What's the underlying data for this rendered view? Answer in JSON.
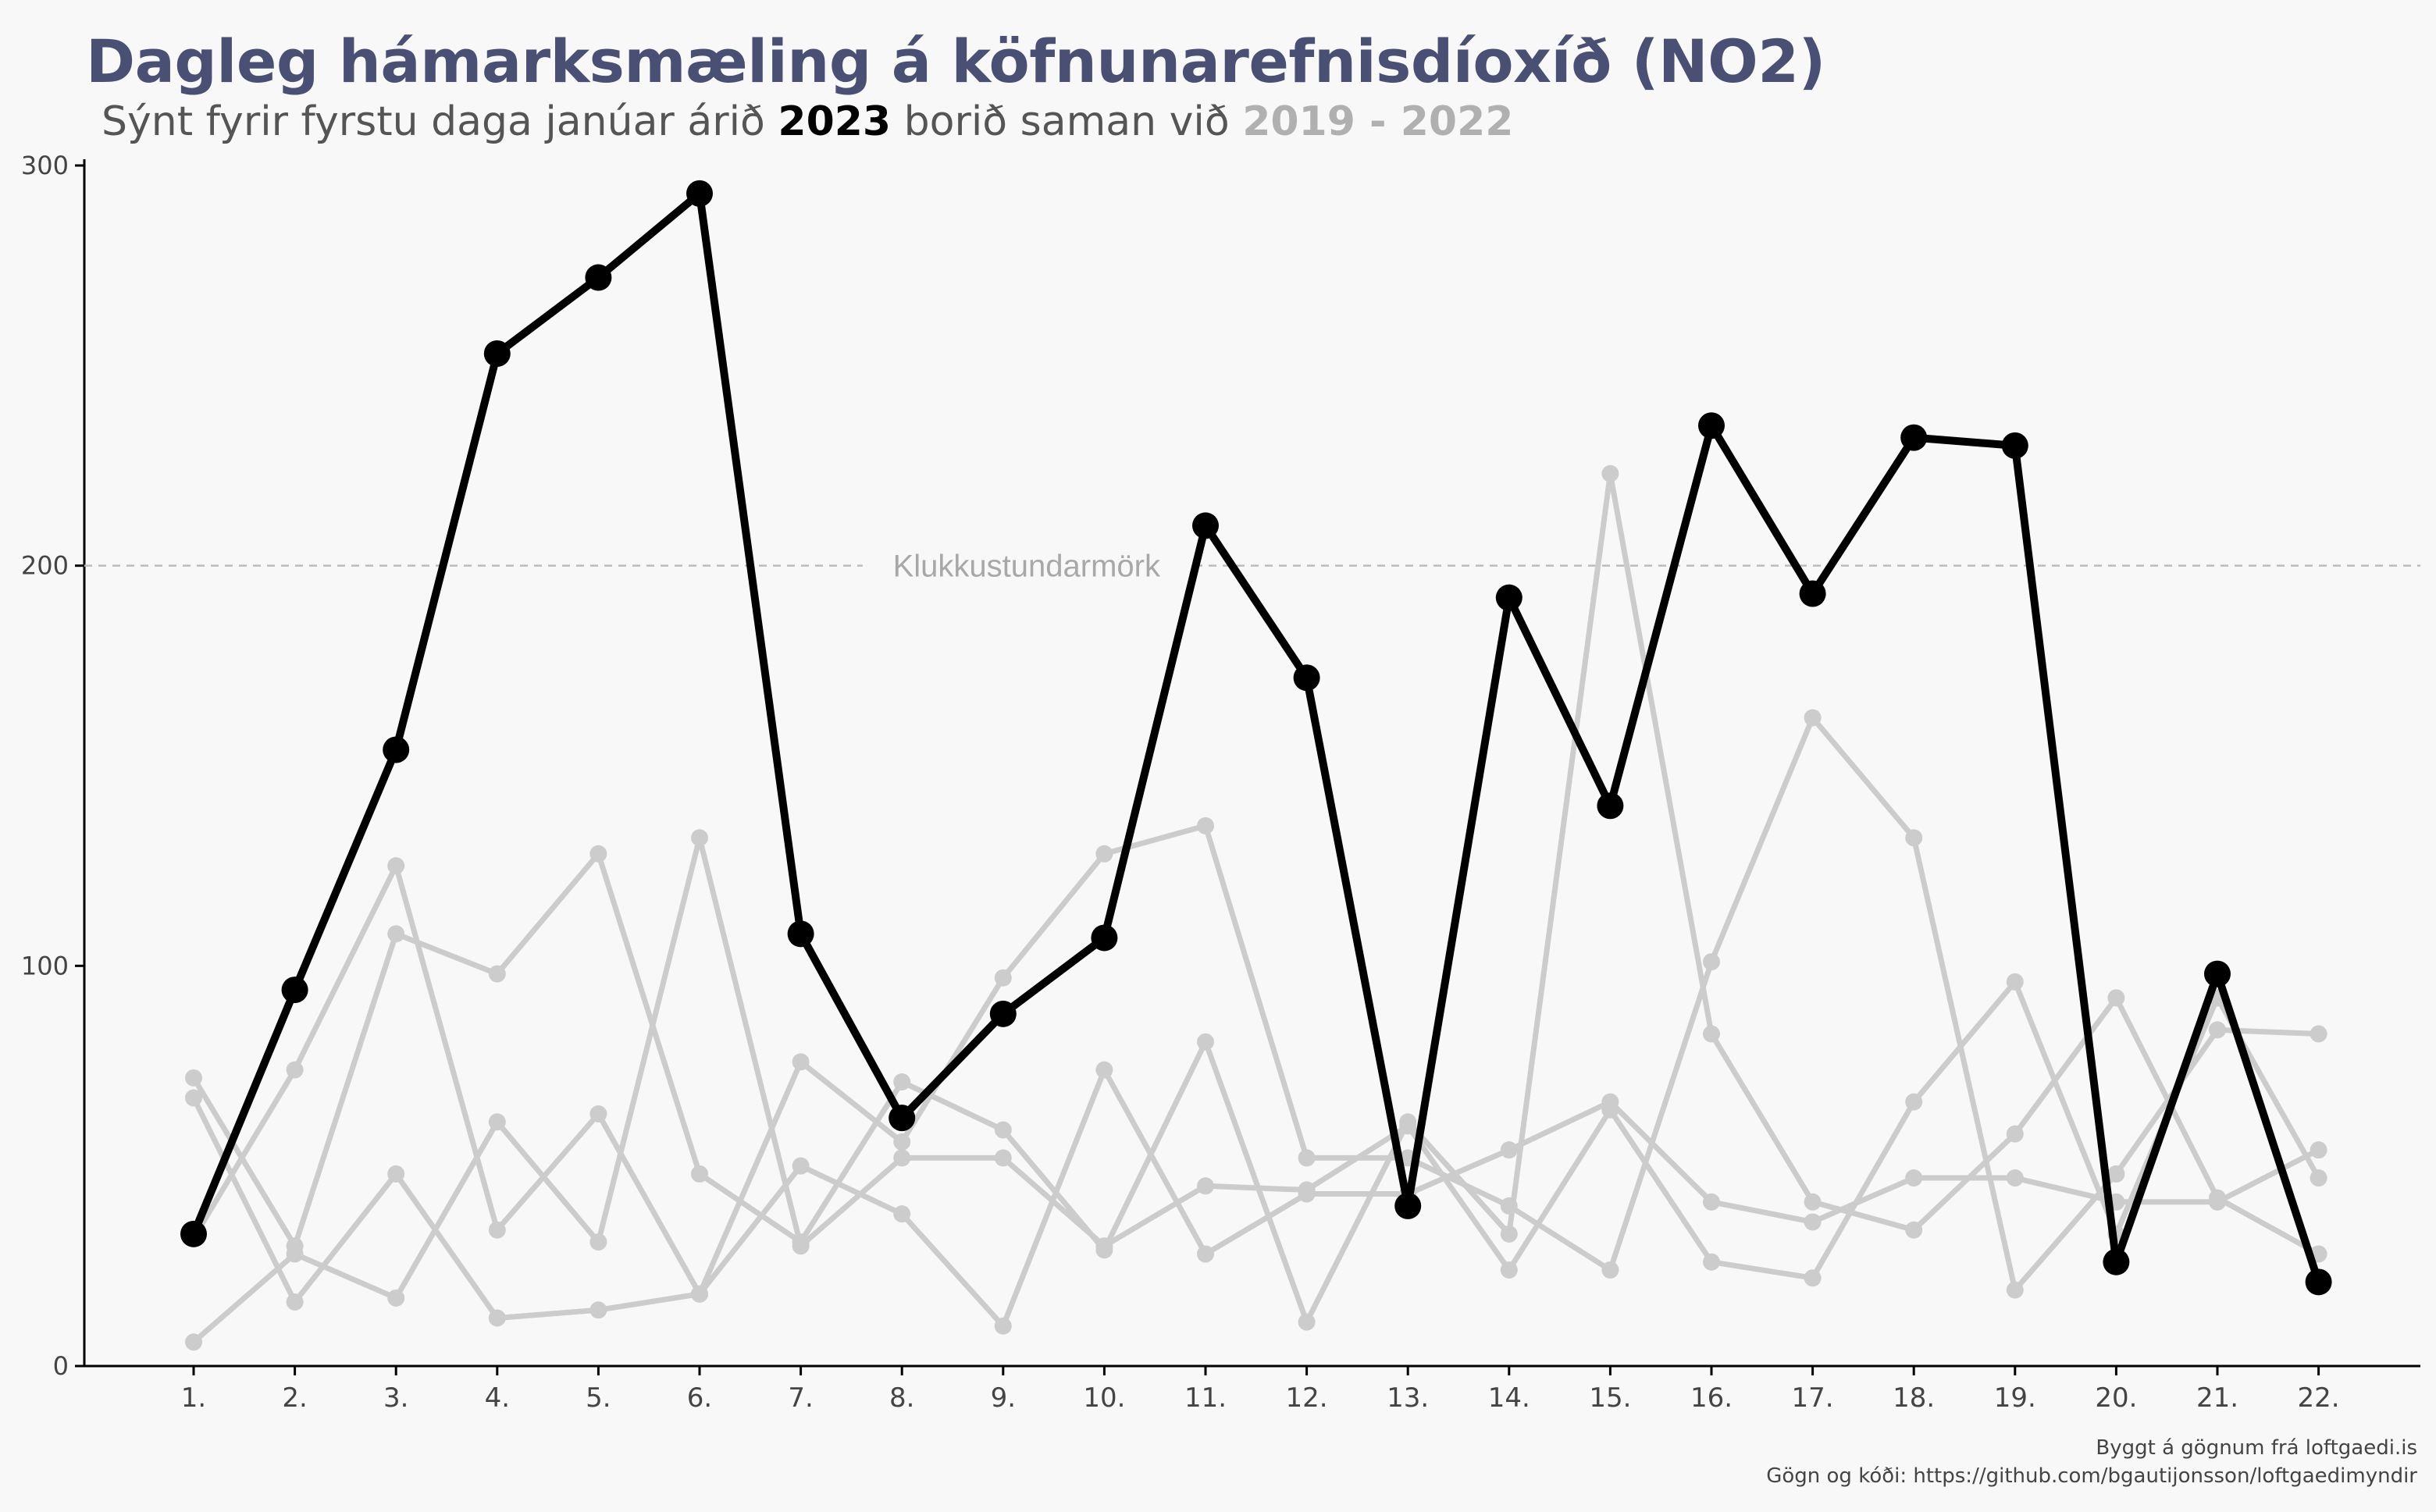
{
  "title": "Dagleg hámarksmæling á köfnunarefnisdíoxíð (NO2)",
  "subtitle": {
    "prefix": "Sýnt fyrir fyrstu daga janúar árið ",
    "highlight_year": "2023",
    "middle": " borið saman við ",
    "comparison_years": "2019 - 2022"
  },
  "caption": {
    "line1": "Byggt á gögnum frá loftgaedi.is",
    "line2": "Gögn og kóði: https://github.com/bgautijonsson/loftgaedimyndir"
  },
  "colors": {
    "title": "#4a5073",
    "highlight": "#000000",
    "comparison": "#cccccc",
    "threshold": "#bbbbbb"
  },
  "chart_data": {
    "type": "line",
    "categories": [
      "1.",
      "2.",
      "3.",
      "4.",
      "5.",
      "6.",
      "7.",
      "8.",
      "9.",
      "10.",
      "11.",
      "12.",
      "13.",
      "14.",
      "15.",
      "16.",
      "17.",
      "18.",
      "19.",
      "20.",
      "21.",
      "22."
    ],
    "ylim": [
      0,
      300
    ],
    "yticks": [
      0,
      100,
      200,
      300
    ],
    "grid": false,
    "threshold": {
      "value": 200,
      "label": "Klukkustundarmörk"
    },
    "series": [
      {
        "name": "2023",
        "highlight": true,
        "values": [
          33,
          94,
          154,
          253,
          272,
          293,
          108,
          62,
          88,
          107,
          210,
          172,
          40,
          192,
          140,
          235,
          193,
          232,
          230,
          26,
          98,
          21
        ]
      },
      {
        "highlight": false,
        "values": [
          32,
          74,
          125,
          34,
          63,
          18,
          76,
          56,
          97,
          128,
          135,
          52,
          52,
          40,
          24,
          101,
          162,
          132,
          19,
          48,
          84,
          83
        ]
      },
      {
        "highlight": false,
        "values": [
          72,
          30,
          108,
          98,
          128,
          48,
          31,
          71,
          59,
          29,
          81,
          11,
          61,
          33,
          223,
          83,
          41,
          34,
          58,
          92,
          42,
          28
        ]
      },
      {
        "highlight": false,
        "values": [
          67,
          16,
          48,
          12,
          14,
          18,
          50,
          38,
          10,
          74,
          28,
          43,
          43,
          54,
          66,
          41,
          36,
          47,
          47,
          41,
          41,
          54
        ]
      },
      {
        "highlight": false,
        "values": [
          6,
          28,
          17,
          61,
          31,
          132,
          30,
          52,
          52,
          30,
          45,
          44,
          60,
          24,
          64,
          26,
          22,
          66,
          96,
          33,
          92,
          47
        ]
      }
    ]
  }
}
